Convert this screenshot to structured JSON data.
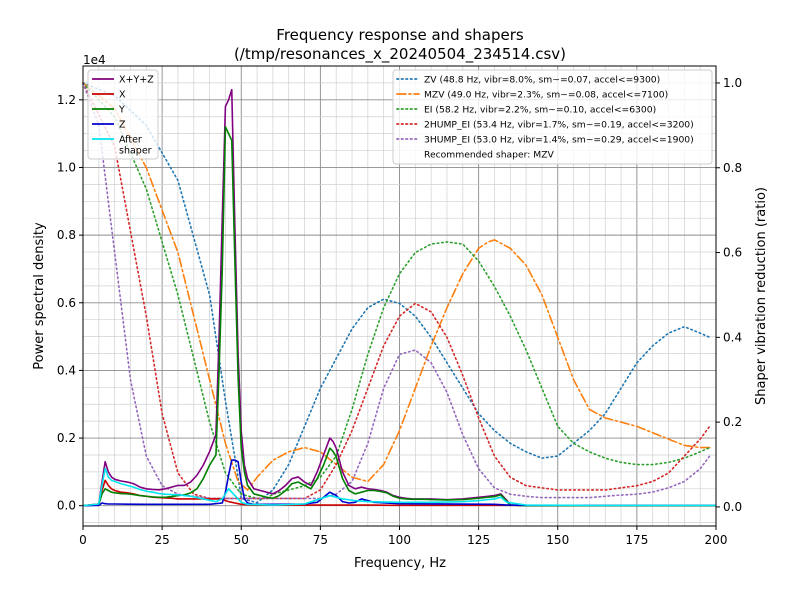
{
  "chart_data": {
    "type": "line",
    "title": "Frequency response and shapers",
    "subtitle": "(/tmp/resonances_x_20240504_234514.csv)",
    "xlabel": "Frequency, Hz",
    "ylabel": "Power spectral density",
    "y2label": "Shaper vibration reduction (ratio)",
    "y_offset_label": "1e4",
    "xlim": [
      0,
      200
    ],
    "ylim": [
      -0.06,
      1.3
    ],
    "y2lim": [
      -0.045,
      1.04
    ],
    "grid": true,
    "x_ticks": [
      0,
      25,
      50,
      75,
      100,
      125,
      150,
      175,
      200
    ],
    "y_ticks": [
      0.0,
      0.2,
      0.4,
      0.6,
      0.8,
      1.0,
      1.2
    ],
    "y_tick_labels": [
      "0.0",
      "0.2",
      "0.4",
      "0.6",
      "0.8",
      "1.0",
      "1.2"
    ],
    "y2_ticks": [
      0.0,
      0.2,
      0.4,
      0.6,
      0.8,
      1.0
    ],
    "y2_tick_labels": [
      "0.0",
      "0.2",
      "0.4",
      "0.6",
      "0.8",
      "1.0"
    ],
    "psd_legend_position": "top-left",
    "shaper_legend_position": "top-right",
    "psd_series": [
      {
        "name": "X+Y+Z",
        "color": "#800080",
        "width": 1.6,
        "x": [
          0,
          5,
          6,
          7,
          8,
          9,
          10,
          12,
          14,
          16,
          18,
          20,
          22,
          24,
          26,
          28,
          30,
          32,
          34,
          36,
          38,
          40,
          42,
          43,
          44,
          45,
          46,
          47,
          48,
          49,
          50,
          51,
          52,
          54,
          56,
          58,
          60,
          62,
          64,
          66,
          68,
          70,
          72,
          74,
          76,
          78,
          79,
          80,
          82,
          84,
          86,
          88,
          90,
          92,
          94,
          96,
          98,
          100,
          102,
          104,
          106,
          108,
          110,
          115,
          120,
          125,
          128,
          130,
          132,
          134,
          135,
          140,
          160,
          180,
          200
        ],
        "y": [
          0,
          0.005,
          0.07,
          0.13,
          0.1,
          0.085,
          0.078,
          0.073,
          0.07,
          0.065,
          0.055,
          0.05,
          0.048,
          0.047,
          0.05,
          0.055,
          0.06,
          0.06,
          0.07,
          0.09,
          0.12,
          0.16,
          0.21,
          0.5,
          0.85,
          1.18,
          1.2,
          1.23,
          0.82,
          0.45,
          0.22,
          0.12,
          0.08,
          0.05,
          0.045,
          0.04,
          0.035,
          0.045,
          0.06,
          0.08,
          0.085,
          0.07,
          0.06,
          0.1,
          0.15,
          0.2,
          0.19,
          0.17,
          0.1,
          0.06,
          0.05,
          0.055,
          0.05,
          0.048,
          0.045,
          0.04,
          0.03,
          0.025,
          0.022,
          0.02,
          0.02,
          0.02,
          0.02,
          0.018,
          0.02,
          0.025,
          0.028,
          0.03,
          0.035,
          0.015,
          0.002,
          0,
          0,
          0,
          0
        ]
      },
      {
        "name": "X",
        "color": "#cc0000",
        "width": 1.6,
        "x": [
          0,
          5,
          6,
          7,
          8,
          9,
          10,
          12,
          14,
          16,
          18,
          20,
          22,
          24,
          26,
          28,
          30,
          32,
          34,
          36,
          38,
          40,
          42,
          43,
          44,
          45,
          46,
          47,
          48,
          49,
          50,
          52,
          54,
          56,
          60,
          70,
          80,
          90,
          100,
          140,
          200
        ],
        "y": [
          0,
          0.005,
          0.045,
          0.075,
          0.06,
          0.05,
          0.045,
          0.04,
          0.038,
          0.035,
          0.03,
          0.028,
          0.025,
          0.024,
          0.023,
          0.022,
          0.02,
          0.02,
          0.02,
          0.02,
          0.02,
          0.02,
          0.02,
          0.02,
          0.02,
          0.015,
          0.012,
          0.01,
          0.008,
          0.006,
          0.004,
          0.003,
          0.002,
          0.002,
          0.002,
          0.002,
          0.002,
          0.002,
          0.001,
          0.001,
          0.001
        ]
      },
      {
        "name": "Y",
        "color": "#008000",
        "width": 1.6,
        "x": [
          0,
          5,
          6,
          7,
          8,
          9,
          10,
          12,
          14,
          16,
          18,
          20,
          22,
          24,
          26,
          28,
          30,
          32,
          34,
          36,
          38,
          40,
          42,
          43,
          44,
          45,
          46,
          47,
          48,
          49,
          50,
          51,
          52,
          54,
          56,
          58,
          60,
          62,
          64,
          66,
          68,
          70,
          72,
          74,
          76,
          78,
          79,
          80,
          82,
          84,
          86,
          88,
          90,
          92,
          94,
          96,
          98,
          100,
          102,
          104,
          106,
          108,
          110,
          115,
          120,
          125,
          128,
          130,
          132,
          134,
          135,
          140,
          160,
          180,
          200
        ],
        "y": [
          0,
          0.003,
          0.035,
          0.05,
          0.045,
          0.04,
          0.038,
          0.036,
          0.035,
          0.033,
          0.03,
          0.028,
          0.026,
          0.025,
          0.025,
          0.027,
          0.03,
          0.032,
          0.038,
          0.05,
          0.08,
          0.12,
          0.15,
          0.4,
          0.7,
          1.12,
          1.1,
          1.08,
          0.72,
          0.38,
          0.17,
          0.1,
          0.06,
          0.035,
          0.03,
          0.025,
          0.022,
          0.03,
          0.045,
          0.065,
          0.07,
          0.06,
          0.05,
          0.08,
          0.12,
          0.17,
          0.16,
          0.145,
          0.08,
          0.045,
          0.035,
          0.04,
          0.045,
          0.045,
          0.042,
          0.038,
          0.028,
          0.022,
          0.02,
          0.019,
          0.019,
          0.019,
          0.018,
          0.017,
          0.018,
          0.022,
          0.025,
          0.027,
          0.032,
          0.012,
          0.002,
          0,
          0,
          0,
          0
        ]
      },
      {
        "name": "Z",
        "color": "#0000cc",
        "width": 1.6,
        "x": [
          0,
          5,
          6,
          7,
          8,
          10,
          20,
          30,
          40,
          44,
          45,
          46,
          47,
          48,
          49,
          50,
          51,
          52,
          54,
          60,
          70,
          74,
          76,
          78,
          80,
          82,
          84,
          86,
          88,
          90,
          92,
          100,
          130,
          134,
          140,
          200
        ],
        "y": [
          0,
          0.001,
          0.008,
          0.006,
          0.005,
          0.005,
          0.004,
          0.004,
          0.004,
          0.008,
          0.04,
          0.09,
          0.135,
          0.135,
          0.13,
          0.07,
          0.02,
          0.008,
          0.004,
          0.004,
          0.005,
          0.01,
          0.025,
          0.04,
          0.03,
          0.012,
          0.008,
          0.01,
          0.02,
          0.015,
          0.01,
          0.006,
          0.004,
          0.002,
          0.001,
          0.001
        ]
      },
      {
        "name": "After\nshaper",
        "color": "#00e5ee",
        "width": 1.6,
        "x": [
          0,
          5,
          6,
          7,
          8,
          9,
          10,
          12,
          14,
          16,
          18,
          20,
          22,
          24,
          26,
          28,
          30,
          32,
          34,
          36,
          38,
          40,
          42,
          44,
          46,
          48,
          50,
          52,
          56,
          60,
          70,
          78,
          80,
          82,
          86,
          90,
          100,
          110,
          120,
          125,
          128,
          130,
          132,
          134,
          140,
          160,
          180,
          200
        ],
        "y": [
          0,
          0.005,
          0.06,
          0.11,
          0.085,
          0.075,
          0.072,
          0.065,
          0.06,
          0.055,
          0.048,
          0.043,
          0.04,
          0.036,
          0.034,
          0.033,
          0.032,
          0.03,
          0.028,
          0.024,
          0.02,
          0.016,
          0.012,
          0.02,
          0.05,
          0.03,
          0.01,
          0.004,
          0.003,
          0.002,
          0.005,
          0.03,
          0.025,
          0.02,
          0.015,
          0.012,
          0.01,
          0.01,
          0.012,
          0.015,
          0.018,
          0.02,
          0.025,
          0.01,
          0.002,
          0.001,
          0.001,
          0.001
        ]
      }
    ],
    "shaper_series": [
      {
        "name": "ZV (48.8 Hz, vibr=8.0%, sm~=0.07, accel<=9300)",
        "color": "#1f77b4",
        "dash": "1.5,3",
        "x": [
          0,
          10,
          20,
          30,
          40,
          45,
          48.8,
          50,
          55,
          60,
          65,
          70,
          75,
          80,
          85,
          90,
          95,
          100,
          105,
          110,
          115,
          120,
          125,
          130,
          135,
          140,
          145,
          150,
          155,
          160,
          165,
          170,
          175,
          180,
          185,
          190,
          195,
          198
        ],
        "y": [
          1.0,
          0.97,
          0.9,
          0.77,
          0.5,
          0.25,
          0.08,
          0.02,
          0.01,
          0.04,
          0.1,
          0.19,
          0.28,
          0.35,
          0.42,
          0.47,
          0.49,
          0.48,
          0.45,
          0.4,
          0.34,
          0.28,
          0.22,
          0.18,
          0.15,
          0.13,
          0.115,
          0.12,
          0.15,
          0.18,
          0.22,
          0.28,
          0.34,
          0.38,
          0.41,
          0.425,
          0.41,
          0.4
        ]
      },
      {
        "name": "MZV (49.0 Hz, vibr=2.3%, sm~=0.08, accel<=7100)",
        "color": "#ff7f0e",
        "dash": "9,3,2,3",
        "x": [
          0,
          10,
          20,
          30,
          40,
          45,
          49,
          52,
          55,
          60,
          65,
          70,
          75,
          80,
          85,
          90,
          95,
          100,
          105,
          110,
          115,
          120,
          125,
          128,
          130,
          135,
          140,
          145,
          150,
          155,
          160,
          165,
          170,
          175,
          180,
          185,
          190,
          195,
          198
        ],
        "y": [
          1.0,
          0.94,
          0.8,
          0.6,
          0.3,
          0.15,
          0.06,
          0.04,
          0.07,
          0.11,
          0.13,
          0.14,
          0.13,
          0.1,
          0.07,
          0.06,
          0.1,
          0.18,
          0.28,
          0.38,
          0.47,
          0.55,
          0.61,
          0.625,
          0.63,
          0.61,
          0.57,
          0.5,
          0.4,
          0.3,
          0.23,
          0.21,
          0.2,
          0.19,
          0.175,
          0.16,
          0.145,
          0.14,
          0.14
        ]
      },
      {
        "name": "EI (58.2 Hz, vibr=2.2%, sm~=0.10, accel<=6300)",
        "color": "#2ca02c",
        "dash": "1.5,3",
        "x": [
          0,
          10,
          20,
          30,
          40,
          45,
          50,
          55,
          58,
          60,
          65,
          70,
          75,
          80,
          85,
          90,
          95,
          100,
          105,
          110,
          115,
          120,
          125,
          130,
          135,
          140,
          145,
          150,
          155,
          160,
          165,
          170,
          175,
          180,
          185,
          190,
          195,
          198
        ],
        "y": [
          1.0,
          0.92,
          0.75,
          0.5,
          0.2,
          0.08,
          0.03,
          0.02,
          0.02,
          0.03,
          0.04,
          0.05,
          0.07,
          0.12,
          0.23,
          0.36,
          0.47,
          0.55,
          0.6,
          0.62,
          0.625,
          0.62,
          0.58,
          0.52,
          0.45,
          0.37,
          0.28,
          0.19,
          0.15,
          0.13,
          0.115,
          0.105,
          0.1,
          0.1,
          0.105,
          0.115,
          0.13,
          0.14
        ]
      },
      {
        "name": "2HUMP_EI (53.4 Hz, vibr=1.7%, sm~=0.19, accel<=3200)",
        "color": "#d62728",
        "dash": "1.5,3",
        "x": [
          0,
          10,
          20,
          25,
          30,
          35,
          40,
          45,
          50,
          55,
          60,
          65,
          70,
          75,
          80,
          85,
          90,
          95,
          100,
          105,
          110,
          115,
          120,
          125,
          130,
          135,
          140,
          145,
          150,
          155,
          160,
          165,
          170,
          175,
          180,
          185,
          190,
          195,
          198
        ],
        "y": [
          1.0,
          0.85,
          0.45,
          0.22,
          0.08,
          0.03,
          0.02,
          0.02,
          0.02,
          0.02,
          0.02,
          0.02,
          0.02,
          0.04,
          0.1,
          0.18,
          0.28,
          0.38,
          0.45,
          0.48,
          0.46,
          0.4,
          0.31,
          0.21,
          0.12,
          0.07,
          0.05,
          0.045,
          0.04,
          0.04,
          0.04,
          0.04,
          0.045,
          0.05,
          0.06,
          0.08,
          0.12,
          0.16,
          0.19
        ]
      },
      {
        "name": "3HUMP_EI (53.0 Hz, vibr=1.4%, sm~=0.29, accel<=1900)",
        "color": "#9467bd",
        "dash": "1.5,3",
        "x": [
          0,
          5,
          10,
          15,
          20,
          25,
          30,
          35,
          40,
          45,
          50,
          55,
          60,
          65,
          70,
          75,
          80,
          85,
          90,
          95,
          100,
          105,
          110,
          115,
          120,
          125,
          130,
          135,
          140,
          145,
          150,
          155,
          160,
          165,
          170,
          175,
          180,
          185,
          190,
          195,
          198
        ],
        "y": [
          1.0,
          0.9,
          0.6,
          0.3,
          0.12,
          0.05,
          0.03,
          0.025,
          0.02,
          0.02,
          0.02,
          0.02,
          0.02,
          0.02,
          0.02,
          0.02,
          0.03,
          0.06,
          0.15,
          0.28,
          0.36,
          0.37,
          0.34,
          0.27,
          0.17,
          0.09,
          0.045,
          0.03,
          0.025,
          0.022,
          0.022,
          0.022,
          0.022,
          0.025,
          0.028,
          0.03,
          0.035,
          0.045,
          0.06,
          0.09,
          0.12
        ]
      }
    ],
    "recommended_text": "Recommended shaper: MZV"
  }
}
